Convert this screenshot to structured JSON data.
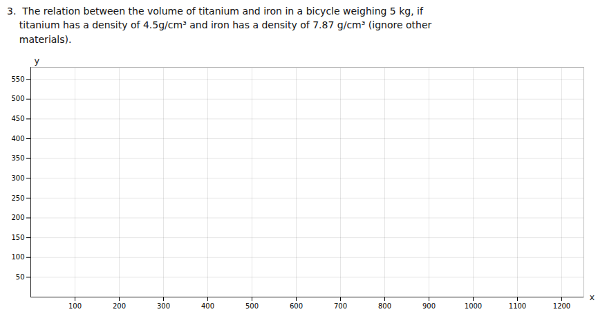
{
  "chart_data": {
    "type": "line",
    "title": "3.  The relation between the volume of titanium and iron in a bicycle weighing 5 kg, if\n    titanium has a density of 4.5g/cm³ and iron has a density of 7.87 g/cm³ (ignore other\n    materials).",
    "xlabel": "x",
    "ylabel": "y",
    "xlim": [
      0,
      1250
    ],
    "ylim": [
      0,
      580
    ],
    "xticks": [
      100,
      200,
      300,
      400,
      500,
      600,
      700,
      800,
      900,
      1000,
      1100,
      1200
    ],
    "yticks": [
      50,
      100,
      150,
      200,
      250,
      300,
      350,
      400,
      450,
      500,
      550
    ],
    "grid": true
  }
}
